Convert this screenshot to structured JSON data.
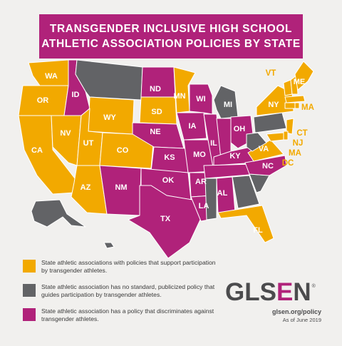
{
  "title": {
    "line1": "TRANSGENDER INCLUSIVE HIGH SCHOOL",
    "line2": "ATHLETIC ASSOCIATION POLICIES BY STATE"
  },
  "colors": {
    "inclusive": "#f2a900",
    "no_policy": "#626366",
    "discriminatory": "#b0227a",
    "background": "#f1f0ee",
    "title_banner": "#b0227a"
  },
  "categories": {
    "inclusive": [
      "WA",
      "OR",
      "CA",
      "NV",
      "UT",
      "AZ",
      "CO",
      "WY",
      "SD",
      "MN",
      "NY",
      "VT",
      "ME",
      "MA",
      "CT",
      "NJ",
      "VA",
      "DC",
      "FL",
      "MD",
      "DE",
      "RI",
      "NH"
    ],
    "no_policy": [
      "MT",
      "MI",
      "PA",
      "WV",
      "SC",
      "GA",
      "MS",
      "AK",
      "HI"
    ],
    "discriminatory": [
      "ID",
      "ND",
      "NE",
      "KS",
      "OK",
      "TX",
      "NM",
      "IA",
      "MO",
      "AR",
      "LA",
      "WI",
      "IL",
      "IN",
      "OH",
      "KY",
      "TN",
      "AL",
      "NC"
    ]
  },
  "state_labels": [
    "WA",
    "OR",
    "CA",
    "NV",
    "ID",
    "UT",
    "AZ",
    "WY",
    "CO",
    "NM",
    "ND",
    "SD",
    "NE",
    "KS",
    "OK",
    "TX",
    "MN",
    "IA",
    "MO",
    "AR",
    "LA",
    "WI",
    "IL",
    "MI",
    "OH",
    "KY",
    "AL",
    "NC",
    "VA",
    "NY",
    "VT",
    "ME",
    "MA",
    "CT",
    "NJ",
    "MA",
    "DC",
    "FL"
  ],
  "legend": [
    {
      "key": "inclusive",
      "text": "State athletic associations with policies that support participation by transgender athletes."
    },
    {
      "key": "no_policy",
      "text": "State athletic association has no standard, publicized policy that guides participation by transgender athletes."
    },
    {
      "key": "discriminatory",
      "text": "State athletic association has a policy that discriminates against transgender athletes."
    }
  ],
  "brand": {
    "logo_parts": [
      "GLS",
      "E",
      "N"
    ],
    "registered": "®",
    "url": "glsen.org/policy",
    "as_of": "As of June 2019"
  }
}
